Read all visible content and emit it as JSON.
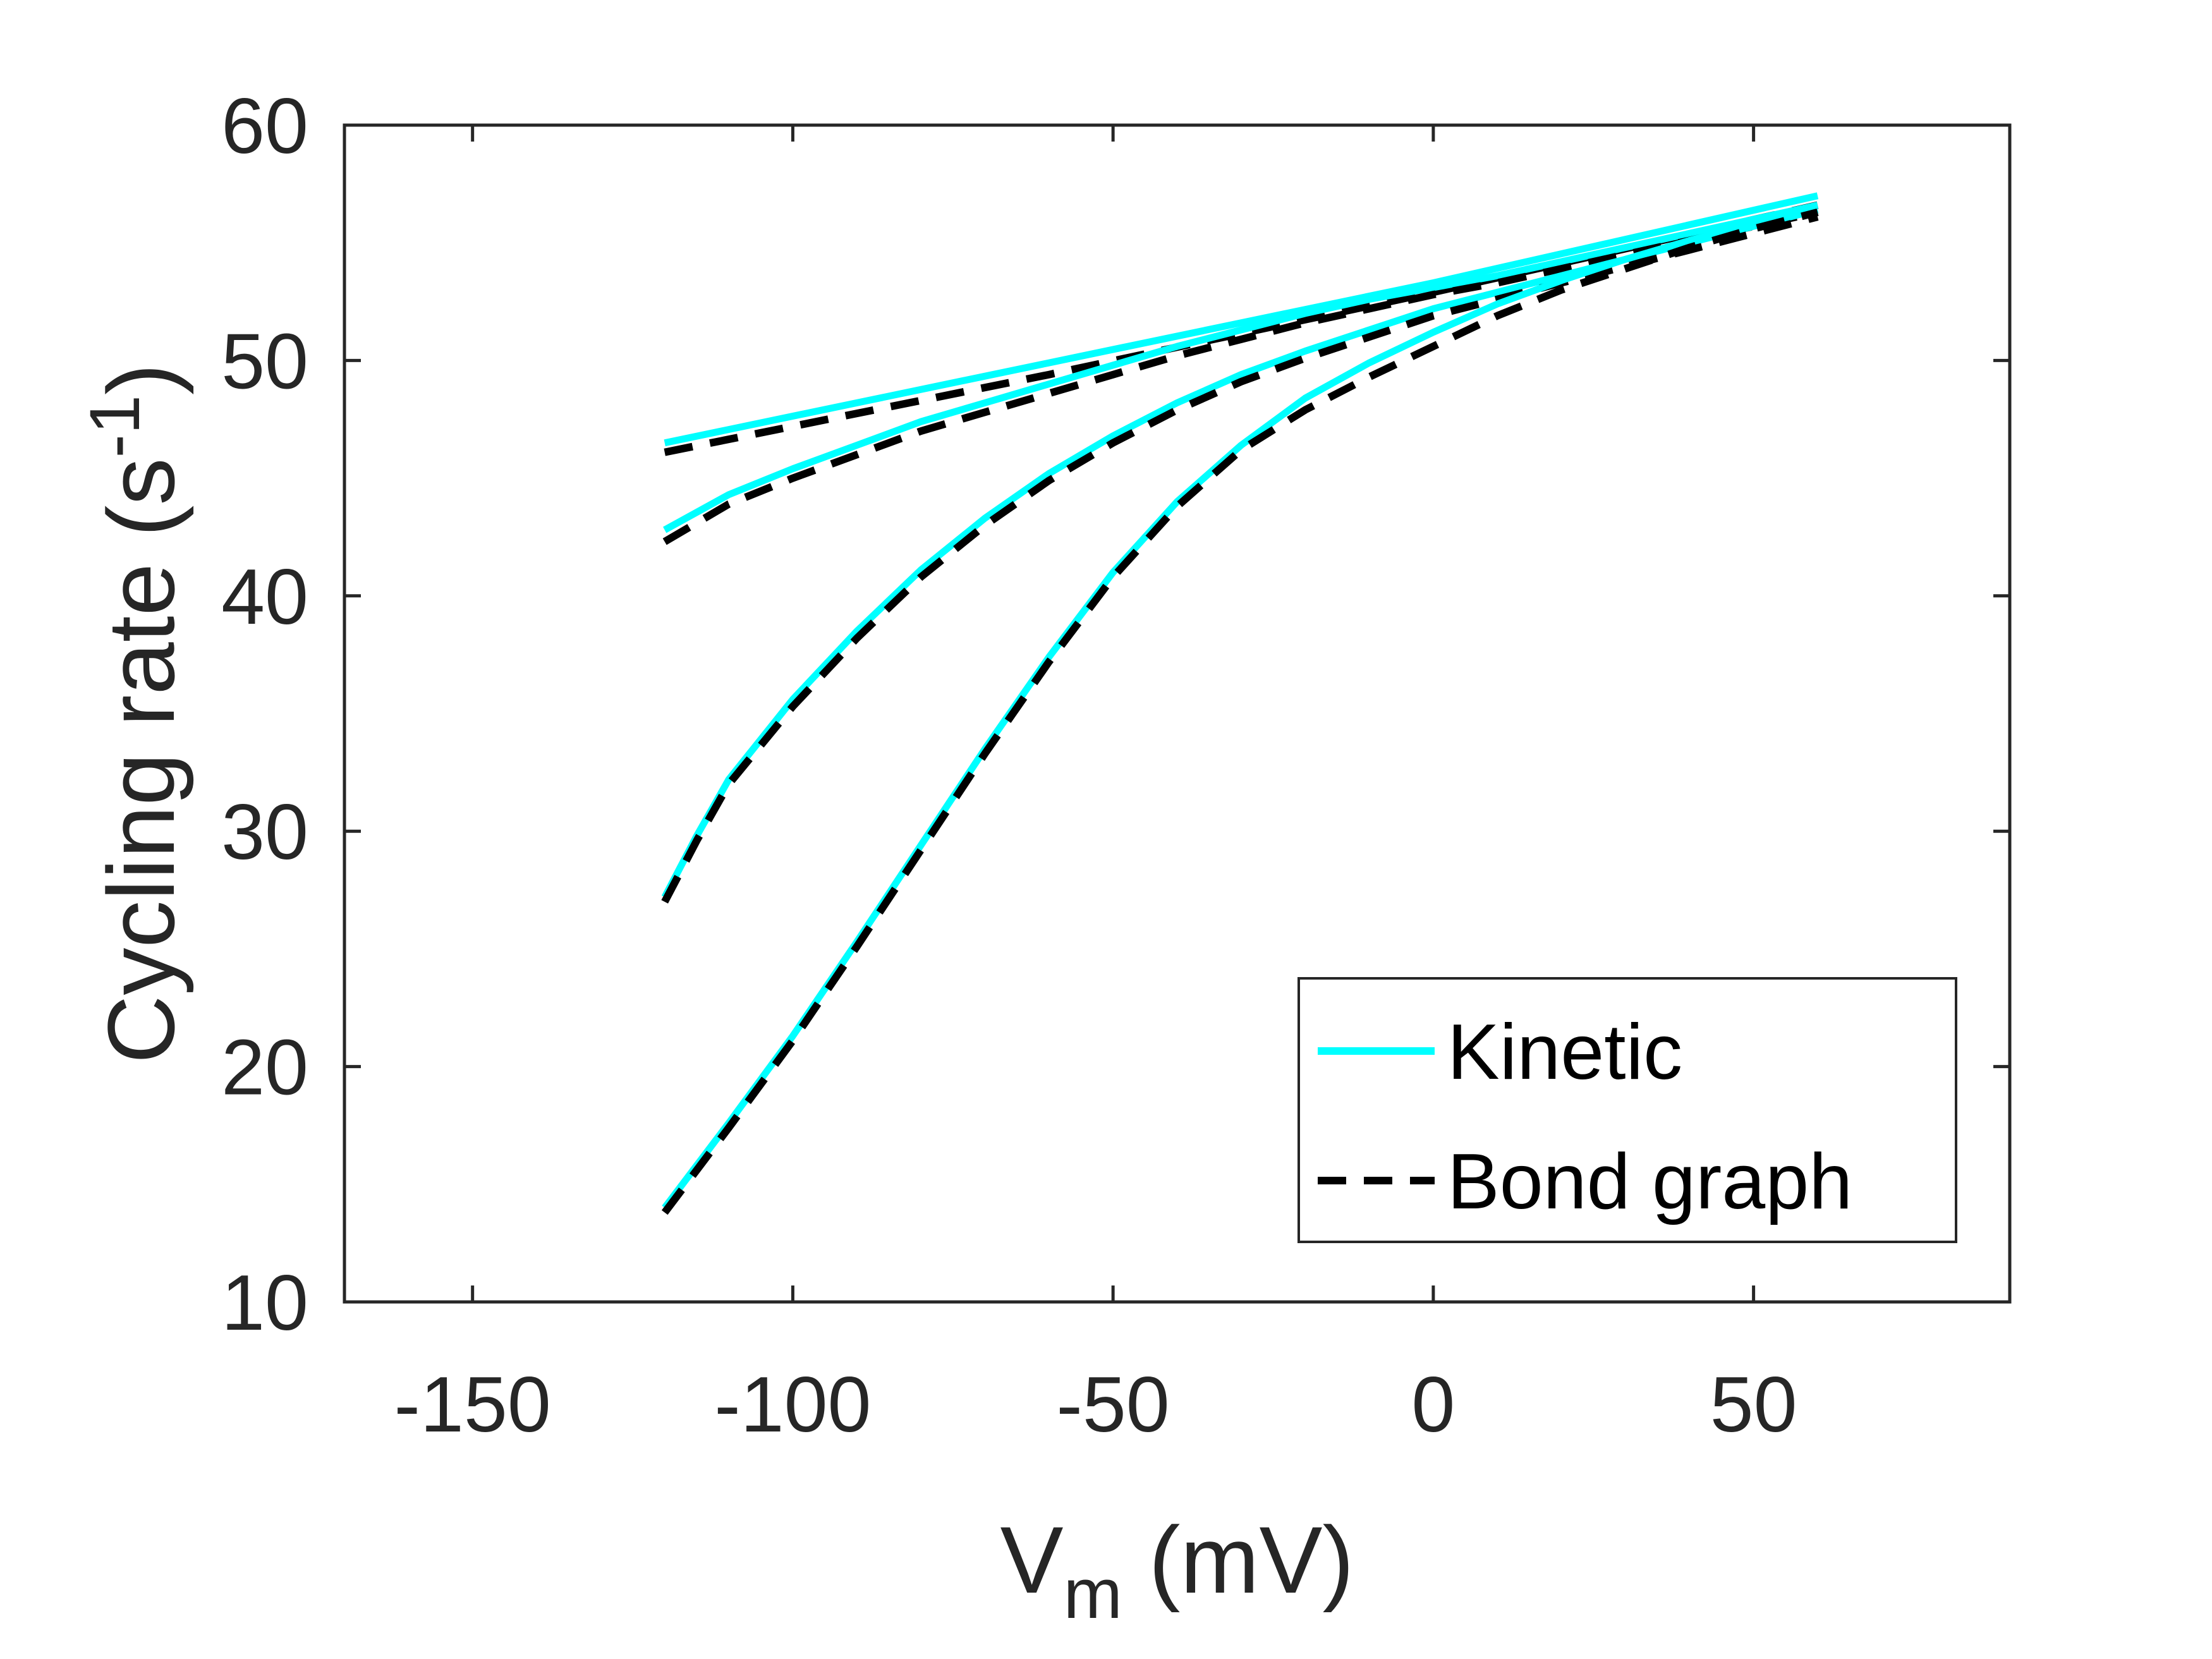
{
  "chart_data": {
    "type": "line",
    "xlabel": {
      "main": "V",
      "sub": "m",
      "rest": " (mV)"
    },
    "ylabel": {
      "main": "Cycling rate (s",
      "sup": "-1",
      "rest": ")"
    },
    "xlim": [
      -170,
      90
    ],
    "ylim": [
      10,
      60
    ],
    "xticks": [
      -150,
      -100,
      -50,
      0,
      50
    ],
    "xtick_labels": [
      "-150",
      "-100",
      "-50",
      "0",
      "50"
    ],
    "yticks": [
      10,
      20,
      30,
      40,
      50,
      60
    ],
    "ytick_labels": [
      "10",
      "20",
      "30",
      "40",
      "50",
      "60"
    ],
    "grid": false,
    "legend_position": "bottom-right",
    "legend_entries": [
      "Kinetic",
      "Bond graph"
    ],
    "colors": {
      "kinetic": "#00ffff",
      "bond_graph": "#000000",
      "axis": "#262626"
    },
    "series": [
      {
        "legend": "Kinetic",
        "style": "solid",
        "color": "#00ffff",
        "x": [
          -120,
          -60,
          0,
          60
        ],
        "y": [
          46.5,
          49.9,
          53.3,
          57.0
        ]
      },
      {
        "legend": "Bond graph",
        "style": "dashed",
        "color": "#000000",
        "x": [
          -120,
          -60,
          0,
          60
        ],
        "y": [
          46.1,
          49.4,
          52.9,
          56.6
        ]
      },
      {
        "legend": "Kinetic",
        "style": "solid",
        "color": "#00ffff",
        "x": [
          -120,
          -110,
          -100,
          -90,
          -80,
          -70,
          -60,
          -50,
          -40,
          -30,
          -20,
          -10,
          0,
          10,
          20,
          30,
          40,
          50,
          60
        ],
        "y": [
          42.8,
          44.3,
          45.4,
          46.4,
          47.4,
          48.2,
          49.0,
          49.8,
          50.6,
          51.3,
          52.0,
          52.6,
          53.1,
          53.6,
          54.2,
          54.8,
          55.4,
          56.0,
          56.6
        ]
      },
      {
        "legend": "Bond graph",
        "style": "dashed",
        "color": "#000000",
        "x": [
          -120,
          -110,
          -100,
          -90,
          -80,
          -70,
          -60,
          -50,
          -40,
          -30,
          -20,
          -10,
          0,
          10,
          20,
          30,
          40,
          50,
          60
        ],
        "y": [
          42.3,
          43.9,
          45.0,
          46.0,
          47.0,
          47.8,
          48.6,
          49.4,
          50.2,
          50.9,
          51.6,
          52.2,
          52.8,
          53.3,
          53.9,
          54.5,
          55.1,
          55.7,
          56.3
        ]
      },
      {
        "legend": "Kinetic",
        "style": "solid",
        "color": "#00ffff",
        "x": [
          -120,
          -115,
          -110,
          -100,
          -90,
          -80,
          -70,
          -60,
          -50,
          -40,
          -30,
          -20,
          -10,
          0,
          10,
          20,
          30,
          40,
          50,
          60
        ],
        "y": [
          27.2,
          29.8,
          32.2,
          35.6,
          38.5,
          41.1,
          43.3,
          45.2,
          46.8,
          48.2,
          49.4,
          50.4,
          51.3,
          52.2,
          52.9,
          53.6,
          54.3,
          55.0,
          55.7,
          56.4
        ]
      },
      {
        "legend": "Bond graph",
        "style": "dashed",
        "color": "#000000",
        "x": [
          -120,
          -115,
          -110,
          -100,
          -90,
          -80,
          -70,
          -60,
          -50,
          -40,
          -30,
          -20,
          -10,
          0,
          10,
          20,
          30,
          40,
          50,
          60
        ],
        "y": [
          27.0,
          29.6,
          32.0,
          35.3,
          38.2,
          40.8,
          43.0,
          44.9,
          46.5,
          47.9,
          49.1,
          50.1,
          51.0,
          51.9,
          52.6,
          53.3,
          54.0,
          54.7,
          55.4,
          56.1
        ]
      },
      {
        "legend": "Kinetic",
        "style": "solid",
        "color": "#00ffff",
        "x": [
          -120,
          -115,
          -110,
          -100,
          -90,
          -80,
          -70,
          -60,
          -50,
          -40,
          -30,
          -20,
          -10,
          0,
          10,
          20,
          30,
          40,
          50,
          60
        ],
        "y": [
          14.0,
          15.8,
          17.6,
          21.3,
          25.3,
          29.4,
          33.5,
          37.4,
          41.0,
          44.0,
          46.4,
          48.4,
          49.9,
          51.2,
          52.4,
          53.4,
          54.3,
          55.1,
          55.8,
          56.4
        ]
      },
      {
        "legend": "Bond graph",
        "style": "dashed",
        "color": "#000000",
        "x": [
          -120,
          -115,
          -110,
          -100,
          -90,
          -80,
          -70,
          -60,
          -50,
          -40,
          -30,
          -20,
          -10,
          0,
          10,
          20,
          30,
          40,
          50,
          60
        ],
        "y": [
          13.8,
          15.6,
          17.4,
          21.1,
          25.1,
          29.2,
          33.3,
          37.2,
          40.8,
          43.8,
          46.2,
          47.9,
          49.3,
          50.6,
          51.9,
          53.0,
          53.9,
          54.8,
          55.6,
          56.3
        ]
      }
    ]
  }
}
